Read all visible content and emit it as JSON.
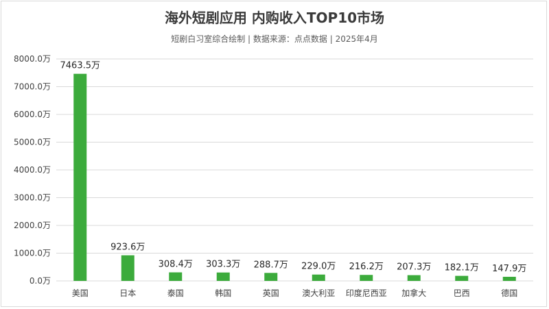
{
  "title": "海外短剧应用 内购收入TOP10市场",
  "subtitle": "短剧白习室综合绘制 | 数据来源：点点数据 | 2025年4月",
  "colors": {
    "bar": "#3cab3c",
    "grid": "#d9d9d9"
  },
  "chart_data": {
    "type": "bar",
    "categories": [
      "美国",
      "日本",
      "泰国",
      "韩国",
      "英国",
      "澳大利亚",
      "印度尼西亚",
      "加拿大",
      "巴西",
      "德国"
    ],
    "values": [
      7463.5,
      923.6,
      308.4,
      303.3,
      288.7,
      229.0,
      216.2,
      207.3,
      182.1,
      147.9
    ],
    "data_labels": [
      "7463.5万",
      "923.6万",
      "308.4万",
      "303.3万",
      "288.7万",
      "229.0万",
      "216.2万",
      "207.3万",
      "182.1万",
      "147.9万"
    ],
    "ylim": [
      0,
      8000
    ],
    "yticks": [
      0,
      1000,
      2000,
      3000,
      4000,
      5000,
      6000,
      7000,
      8000
    ],
    "ytick_labels": [
      "0.0万",
      "1000.0万",
      "2000.0万",
      "3000.0万",
      "4000.0万",
      "5000.0万",
      "6000.0万",
      "7000.0万",
      "8000.0万"
    ],
    "grid": true,
    "legend": "none"
  }
}
